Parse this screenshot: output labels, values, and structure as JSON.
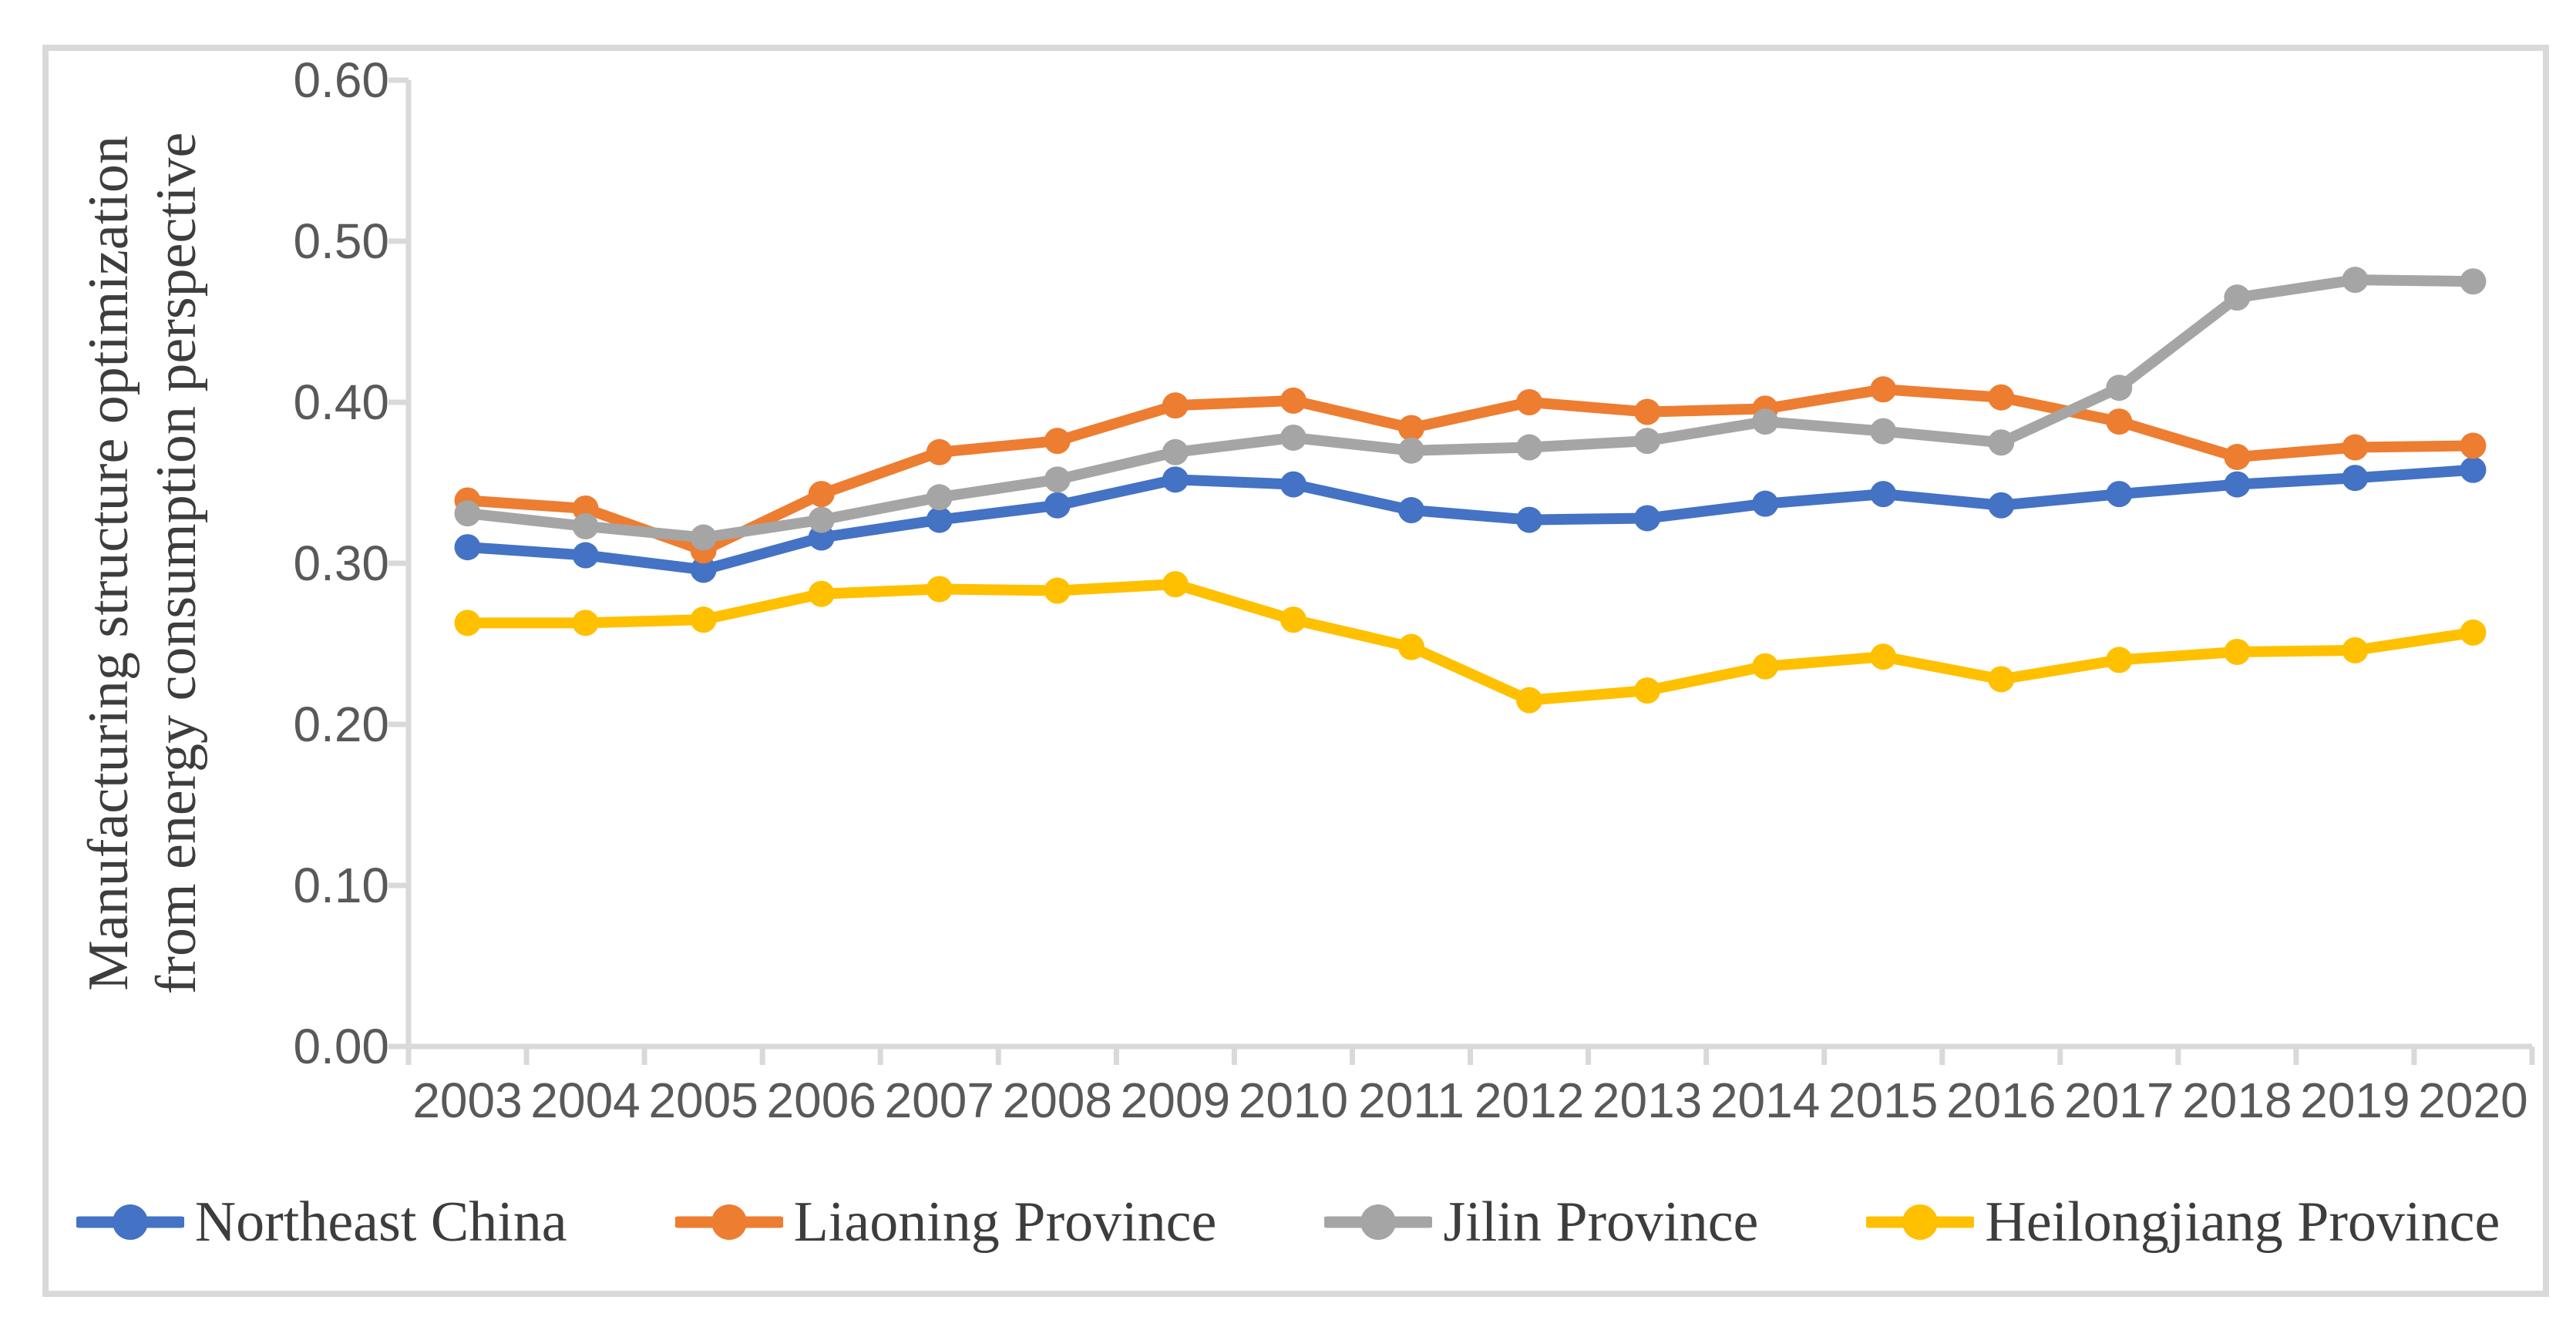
{
  "figure": {
    "background": "#FFFFFF",
    "border_color": "#D9D9D9"
  },
  "chart_data": {
    "type": "line",
    "title": "",
    "ylabel_lines": [
      "Manufacturing structure optimization",
      "from energy consumption perspective"
    ],
    "xlabel": "",
    "categories": [
      "2003",
      "2004",
      "2005",
      "2006",
      "2007",
      "2008",
      "2009",
      "2010",
      "2011",
      "2012",
      "2013",
      "2014",
      "2015",
      "2016",
      "2017",
      "2018",
      "2019",
      "2020"
    ],
    "series": [
      {
        "name": "Northeast China",
        "color": "#4472C4",
        "values": [
          0.31,
          0.305,
          0.296,
          0.316,
          0.327,
          0.336,
          0.352,
          0.349,
          0.333,
          0.327,
          0.328,
          0.337,
          0.343,
          0.336,
          0.343,
          0.349,
          0.353,
          0.358
        ]
      },
      {
        "name": "Liaoning Province",
        "color": "#ED7D31",
        "values": [
          0.339,
          0.334,
          0.308,
          0.343,
          0.369,
          0.376,
          0.398,
          0.401,
          0.384,
          0.4,
          0.394,
          0.396,
          0.408,
          0.403,
          0.388,
          0.366,
          0.372,
          0.373
        ]
      },
      {
        "name": "Jilin Province",
        "color": "#A5A5A5",
        "values": [
          0.331,
          0.323,
          0.316,
          0.327,
          0.341,
          0.352,
          0.369,
          0.378,
          0.37,
          0.372,
          0.376,
          0.388,
          0.382,
          0.375,
          0.409,
          0.465,
          0.476,
          0.475
        ]
      },
      {
        "name": "Heilongjiang Province",
        "color": "#FFC000",
        "values": [
          0.263,
          0.263,
          0.265,
          0.281,
          0.284,
          0.283,
          0.287,
          0.265,
          0.248,
          0.215,
          0.221,
          0.236,
          0.242,
          0.228,
          0.24,
          0.245,
          0.246,
          0.257
        ]
      }
    ],
    "ylim": [
      0.0,
      0.6
    ],
    "ytick_step": 0.1,
    "ytick_labels": [
      "0.00",
      "0.10",
      "0.20",
      "0.30",
      "0.40",
      "0.50",
      "0.60"
    ],
    "grid": false,
    "legend_position": "bottom",
    "axis_color": "#D9D9D9",
    "tick_label_color": "#595959",
    "text_color": "#3D3D3D"
  }
}
